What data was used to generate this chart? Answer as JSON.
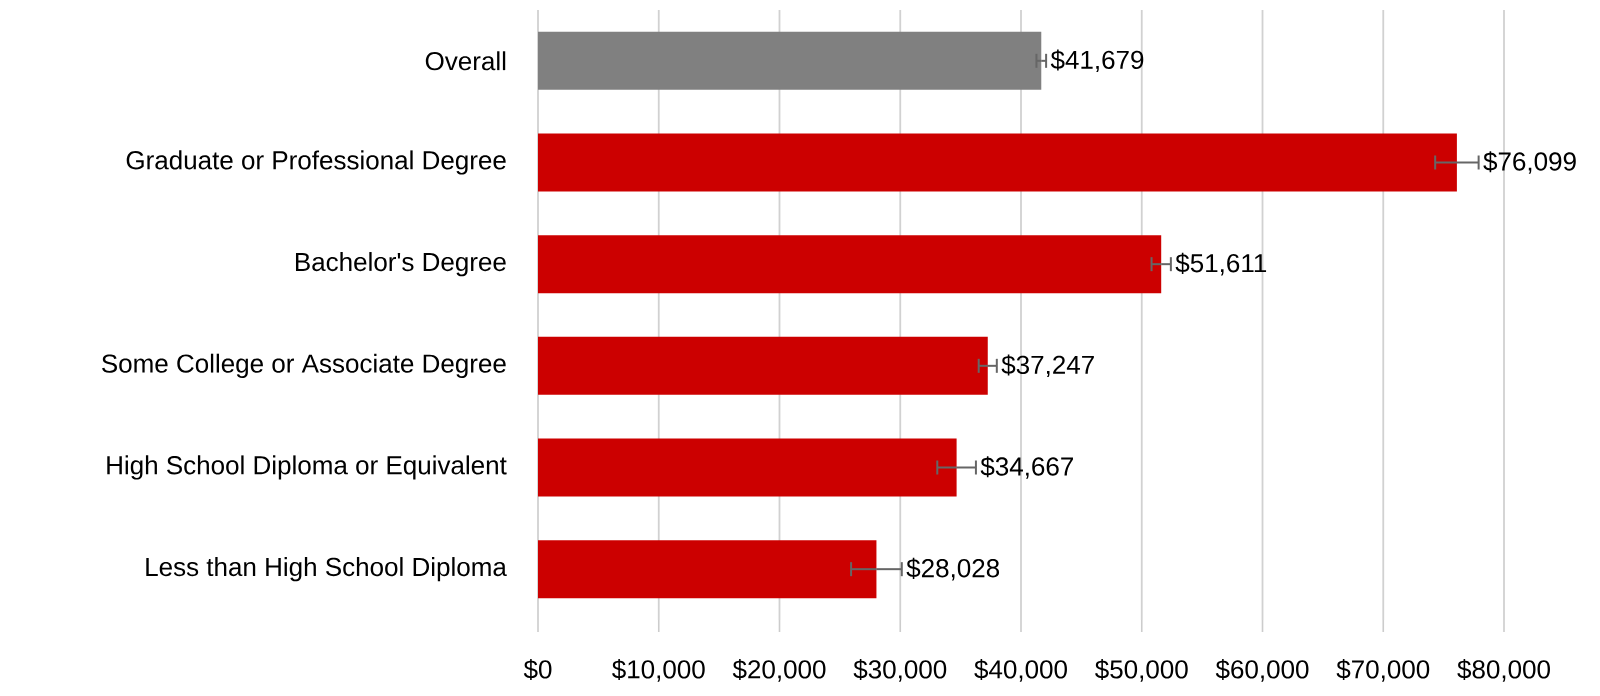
{
  "chart_data": {
    "type": "bar",
    "orientation": "horizontal",
    "categories": [
      "Overall",
      "Graduate or Professional Degree",
      "Bachelor's Degree",
      "Some College or Associate Degree",
      "High School Diploma or Equivalent",
      "Less than High School Diploma"
    ],
    "values": [
      41679,
      76099,
      51611,
      37247,
      34667,
      28028
    ],
    "colors": [
      "#808080",
      "#cc0000",
      "#cc0000",
      "#cc0000",
      "#cc0000",
      "#cc0000"
    ],
    "errors": [
      400,
      1800,
      800,
      750,
      1600,
      2100
    ],
    "value_labels": [
      "$41,679",
      "$76,099",
      "$51,611",
      "$37,247",
      "$34,667",
      "$28,028"
    ],
    "xlim": [
      0,
      80000
    ],
    "xticks": [
      {
        "value": 0,
        "label": "$0"
      },
      {
        "value": 10000,
        "label": "$10,000"
      },
      {
        "value": 20000,
        "label": "$20,000"
      },
      {
        "value": 30000,
        "label": "$30,000"
      },
      {
        "value": 40000,
        "label": "$40,000"
      },
      {
        "value": 50000,
        "label": "$50,000"
      },
      {
        "value": 60000,
        "label": "$60,000"
      },
      {
        "value": 70000,
        "label": "$70,000"
      },
      {
        "value": 80000,
        "label": "$80,000"
      }
    ],
    "grid": "x"
  }
}
